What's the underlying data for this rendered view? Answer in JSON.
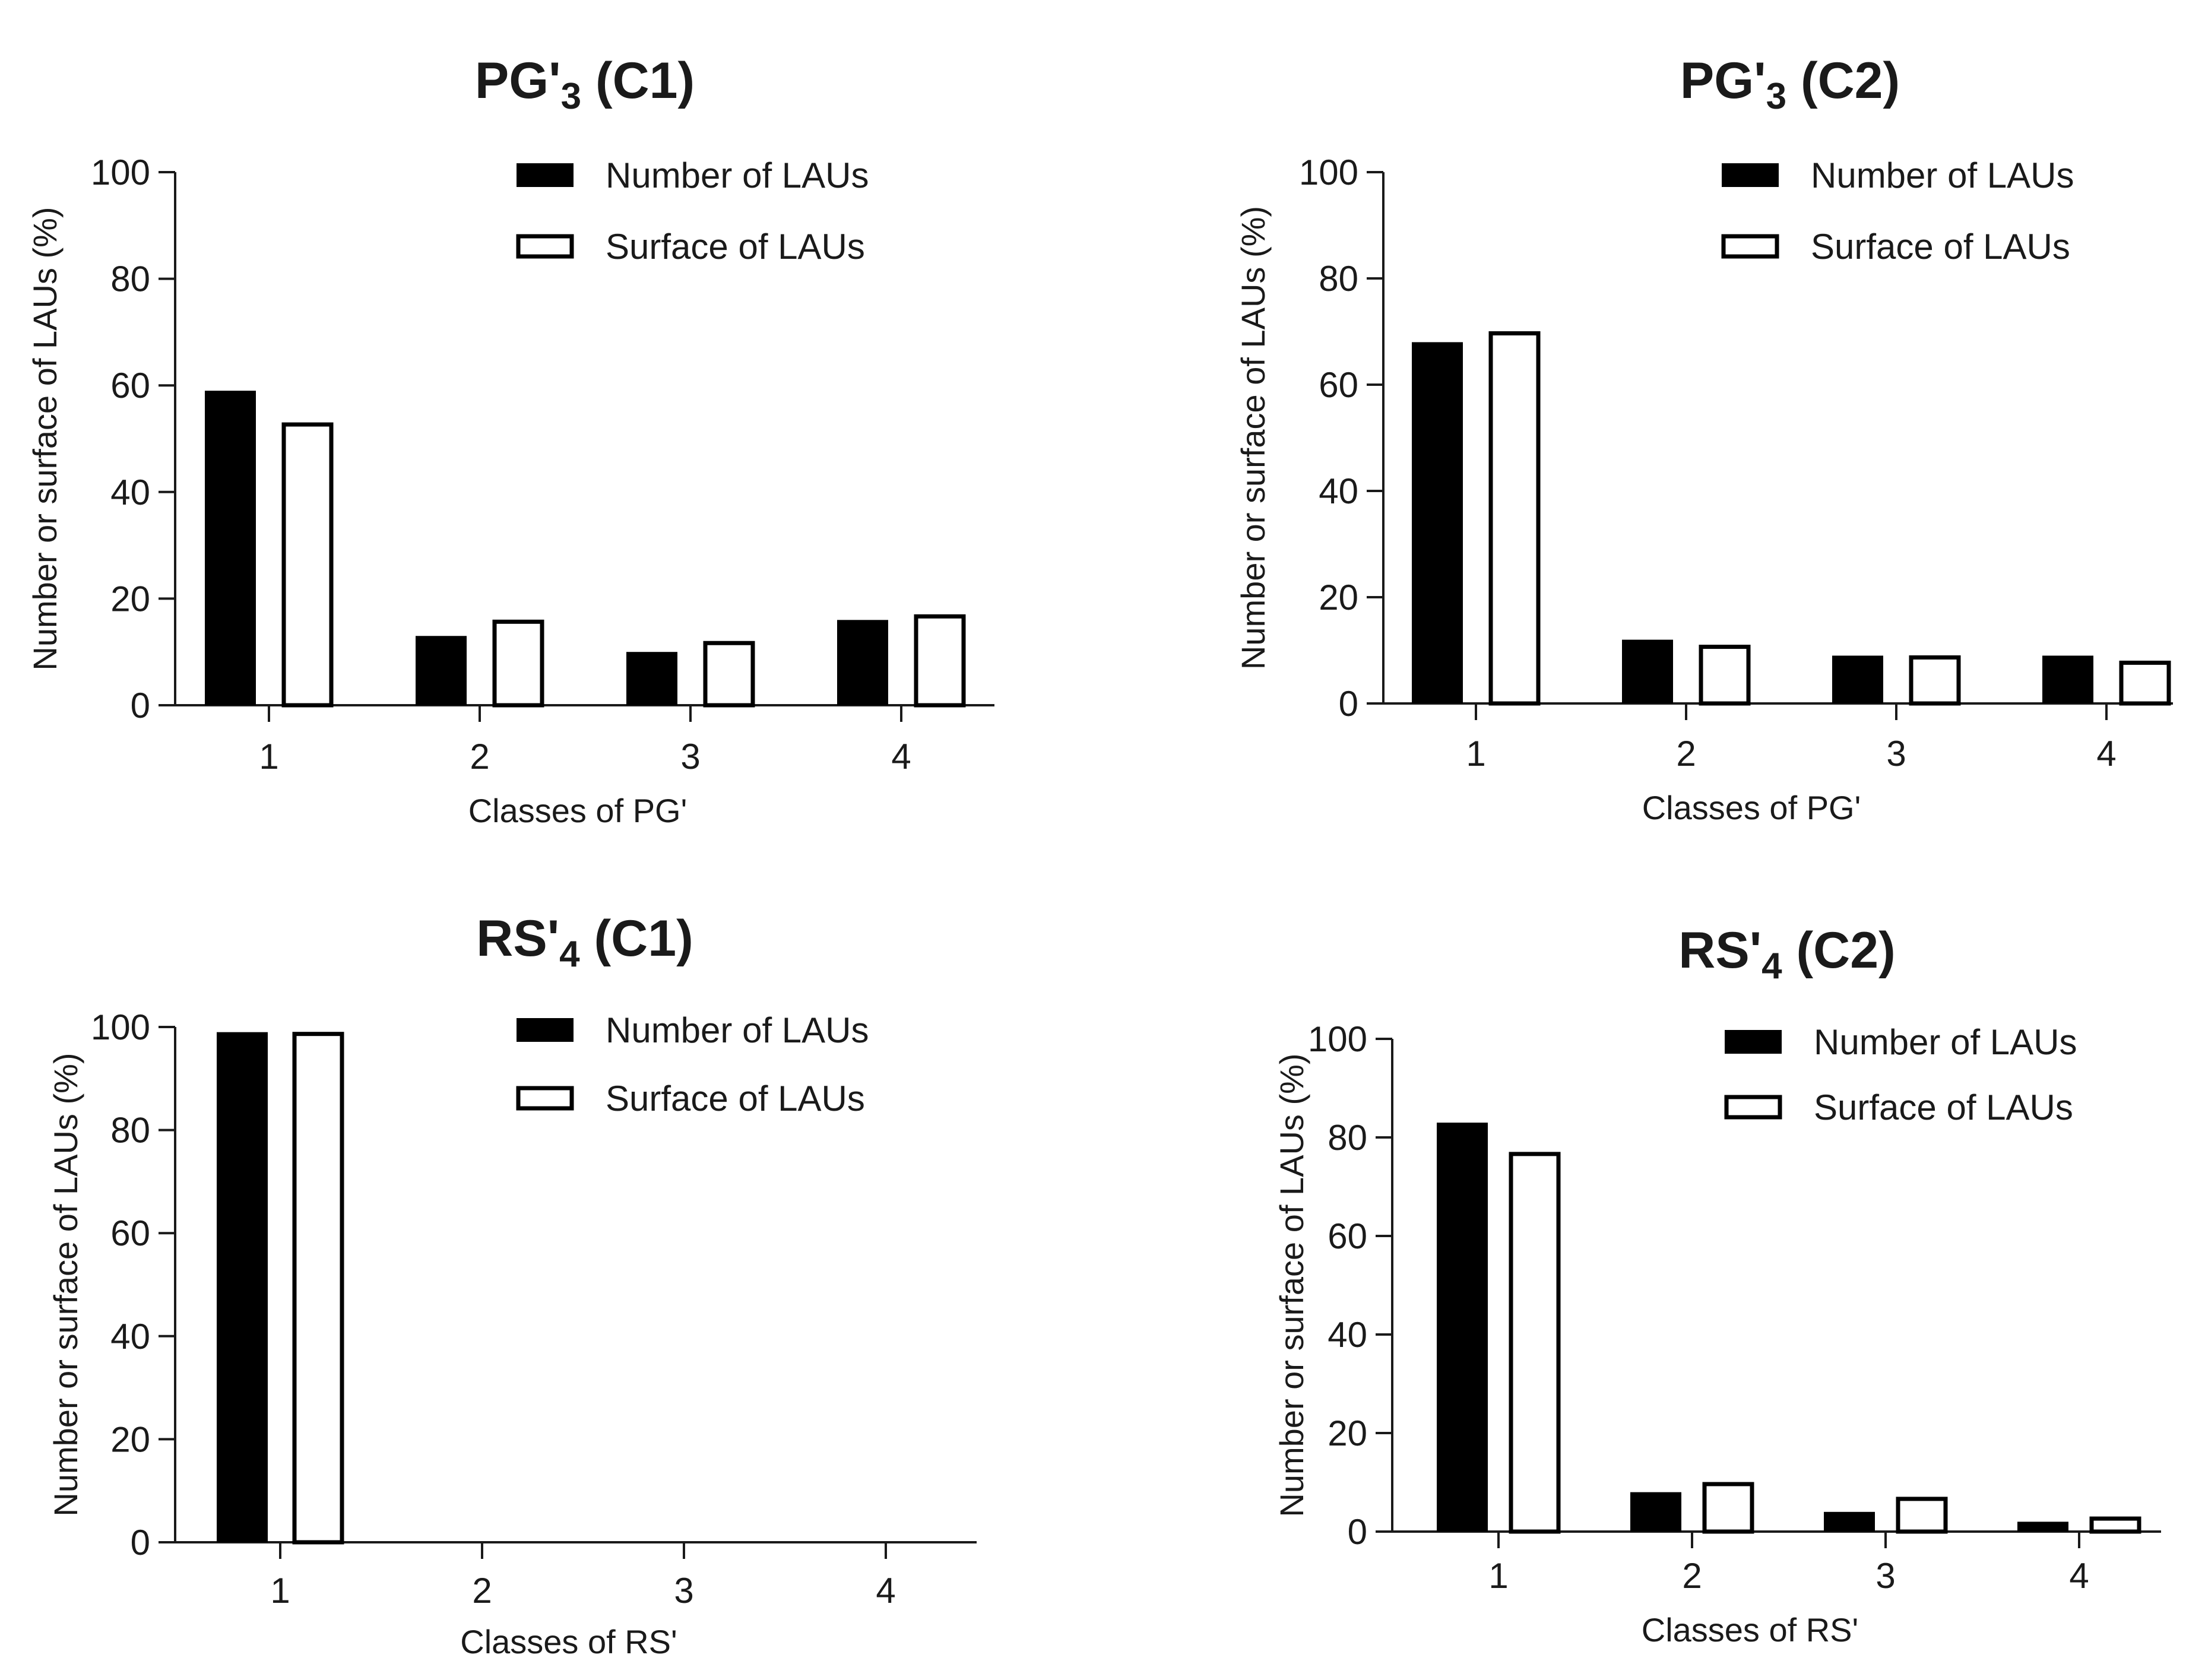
{
  "colors": {
    "number_fill": "#000000",
    "surface_fill": "#ffffff",
    "axis": "#1a1a1a"
  },
  "chart_data": [
    {
      "type": "bar",
      "title": {
        "main": "PG'",
        "sub": "3",
        "suffix": " (C1)"
      },
      "xlabel": "Classes of PG'",
      "ylabel": "Number or surface of LAUs (%)",
      "categories": [
        "1",
        "2",
        "3",
        "4"
      ],
      "yticks": [
        "0",
        "20",
        "40",
        "60",
        "80",
        "100"
      ],
      "ylim": [
        0,
        100
      ],
      "legend": "top-right",
      "series": [
        {
          "name": "Number of LAUs",
          "values": [
            59,
            13,
            10,
            16
          ]
        },
        {
          "name": "Surface of LAUs",
          "values": [
            53,
            16,
            12,
            17
          ]
        }
      ]
    },
    {
      "type": "bar",
      "title": {
        "main": "PG'",
        "sub": "3",
        "suffix": " (C2)"
      },
      "xlabel": "Classes of PG'",
      "ylabel": "Number or surface of LAUs (%)",
      "categories": [
        "1",
        "2",
        "3",
        "4"
      ],
      "yticks": [
        "0",
        "20",
        "40",
        "60",
        "80",
        "100"
      ],
      "ylim": [
        0,
        100
      ],
      "legend": "top-right",
      "series": [
        {
          "name": "Number of LAUs",
          "values": [
            68,
            12,
            9,
            9
          ]
        },
        {
          "name": "Surface of LAUs",
          "values": [
            70,
            11,
            9,
            8
          ]
        }
      ]
    },
    {
      "type": "bar",
      "title": {
        "main": "RS'",
        "sub": "4",
        "suffix": " (C1)"
      },
      "xlabel": "Classes of RS'",
      "ylabel": "Number or surface of LAUs (%)",
      "categories": [
        "1",
        "2",
        "3",
        "4"
      ],
      "yticks": [
        "0",
        "20",
        "40",
        "60",
        "80",
        "100"
      ],
      "ylim": [
        0,
        100
      ],
      "legend": "top-right",
      "series": [
        {
          "name": "Number of LAUs",
          "values": [
            99,
            0,
            0,
            0
          ]
        },
        {
          "name": "Surface of LAUs",
          "values": [
            99,
            0,
            0,
            0
          ]
        }
      ]
    },
    {
      "type": "bar",
      "title": {
        "main": "RS'",
        "sub": "4",
        "suffix": " (C2)"
      },
      "xlabel": "Classes of RS'",
      "ylabel": "Number or surface of LAUs (%)",
      "categories": [
        "1",
        "2",
        "3",
        "4"
      ],
      "yticks": [
        "0",
        "20",
        "40",
        "60",
        "80",
        "100"
      ],
      "ylim": [
        0,
        100
      ],
      "legend": "top-right",
      "series": [
        {
          "name": "Number of LAUs",
          "values": [
            83,
            8,
            4,
            2
          ]
        },
        {
          "name": "Surface of LAUs",
          "values": [
            77,
            10,
            7,
            3
          ]
        }
      ]
    }
  ]
}
